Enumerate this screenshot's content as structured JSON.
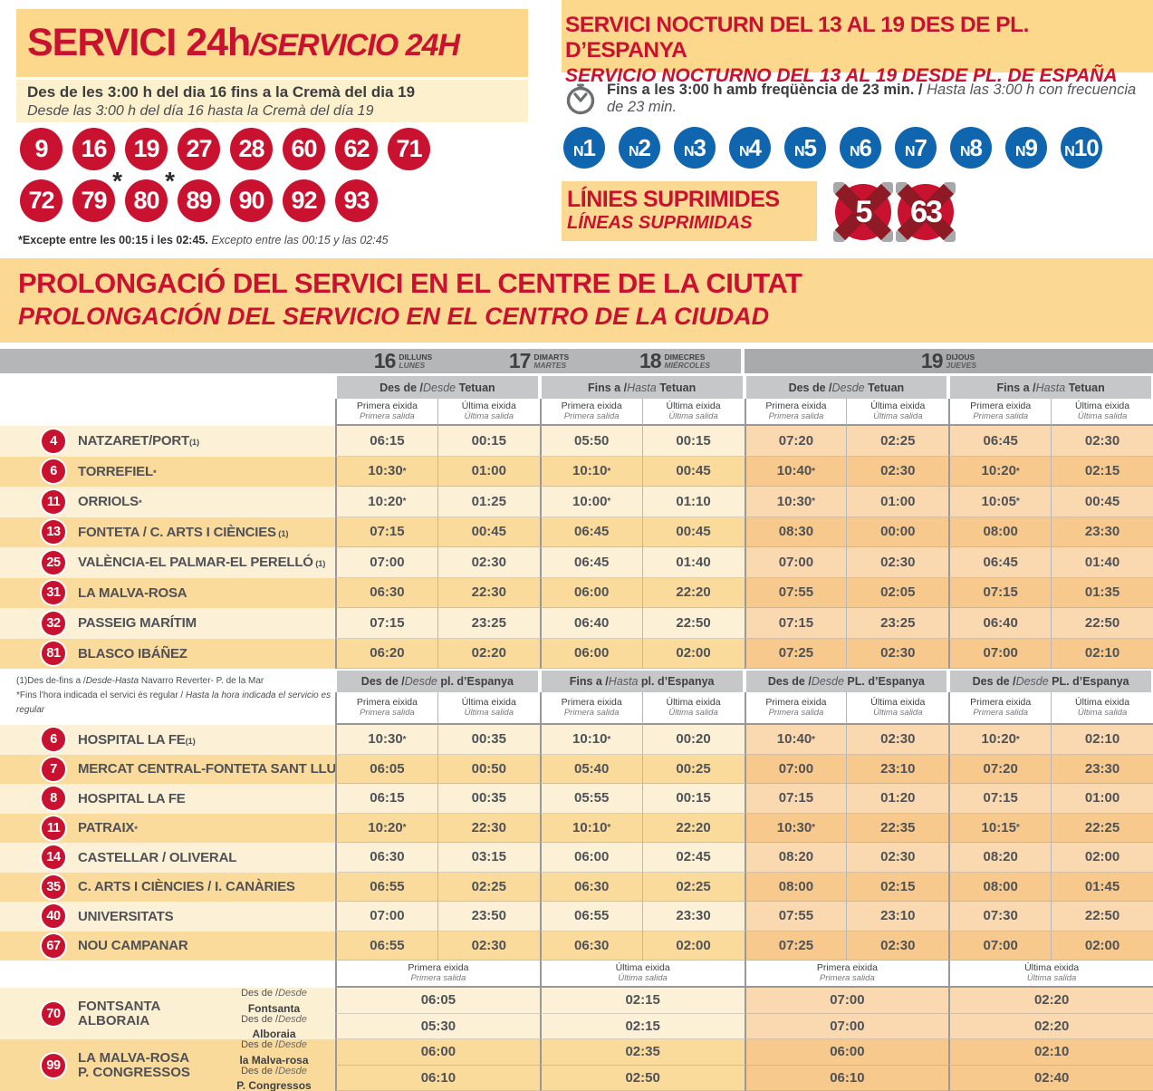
{
  "service24": {
    "title_ca": "SERVICI 24h",
    "title_es": "/SERVICIO 24H",
    "subtitle_ca": "Des de les 3:00 h del dia 16 fins a la Cremà del dia 19",
    "subtitle_es": "Desde las 3:00 h del día 16 hasta la Cremà  del día 19",
    "lines_row1": [
      "9",
      "16",
      "19",
      "27",
      "28",
      "60",
      "62",
      "71"
    ],
    "lines_row2": [
      {
        "n": "72",
        "star": ""
      },
      {
        "n": "79",
        "star": "*"
      },
      {
        "n": "80",
        "star": "*"
      },
      {
        "n": "89",
        "star": ""
      },
      {
        "n": "90",
        "star": ""
      },
      {
        "n": "92",
        "star": ""
      },
      {
        "n": "93",
        "star": ""
      }
    ],
    "footnote_ca": "*Excepte entre les 00:15 i les 02:45.",
    "footnote_es": " Excepto entre las 00:15 y las 02:45"
  },
  "night": {
    "title_ca": "SERVICI NOCTURN DEL 13 AL 19 DES DE PL. D’ESPANYA",
    "title_es": "SERVICIO NOCTURNO DEL 13 AL 19 DESDE PL. DE ESPAÑA",
    "freq_ca": "Fins a les 3:00 h amb freqüència de 23 min.",
    "freq_sep": " / ",
    "freq_es": "Hasta las 3:00 h con frecuencia de 23 min.",
    "lines": [
      "N1",
      "N2",
      "N3",
      "N4",
      "N5",
      "N6",
      "N7",
      "N8",
      "N9",
      "N10"
    ],
    "suppressed_ca": "LÍNIES SUPRIMIDES",
    "suppressed_es": "LÍNEAS SUPRIMIDAS",
    "suppressed_lines": [
      "5",
      "63"
    ]
  },
  "banner": {
    "title_ca": "PROLONGACIÓ DEL SERVICI EN EL CENTRE DE LA CIUTAT",
    "title_es": "PROLONGACIÓN DEL SERVICIO EN EL CENTRO DE LA CIUDAD"
  },
  "days": [
    {
      "num": "16",
      "ca": "DILLUNS",
      "es": "LUNES"
    },
    {
      "num": "17",
      "ca": "DIMARTS",
      "es": "MARTES"
    },
    {
      "num": "18",
      "ca": "DIMECRES",
      "es": "MIÉRCOLES"
    },
    {
      "num": "19",
      "ca": "DIJOUS",
      "es": "JUEVES"
    }
  ],
  "subhead": {
    "first_ca": "Primera eixida",
    "first_es": "Primera salida",
    "last_ca": "Última eixida",
    "last_es": "Última salida"
  },
  "block1": {
    "groups": [
      {
        "pre": "Des de /",
        "it": "Desde",
        "place": " Tetuan"
      },
      {
        "pre": "Fins a /",
        "it": "Hasta",
        "place": " Tetuan"
      },
      {
        "pre": "Des de /",
        "it": "Desde",
        "place": " Tetuan"
      },
      {
        "pre": "Fins a /",
        "it": "Hasta",
        "place": " Tetuan"
      }
    ],
    "rows": [
      {
        "line": "4",
        "name": "NATZARET/PORT",
        "mark": "(1)",
        "times": [
          "06:15",
          "00:15",
          "05:50",
          "00:15",
          "07:20",
          "02:25",
          "06:45",
          "02:30"
        ]
      },
      {
        "line": "6",
        "name": "TORREFIEL",
        "mark": "*",
        "times": [
          "10:30*",
          "01:00",
          "10:10*",
          "00:45",
          "10:40*",
          "02:30",
          "10:20*",
          "02:15"
        ]
      },
      {
        "line": "11",
        "name": "ORRIOLS",
        "mark": "*",
        "times": [
          "10:20*",
          "01:25",
          "10:00*",
          "01:10",
          "10:30*",
          "01:00",
          "10:05*",
          "00:45"
        ]
      },
      {
        "line": "13",
        "name": "FONTETA / C. ARTS I CIÈNCIES",
        "mark": " (1)",
        "times": [
          "07:15",
          "00:45",
          "06:45",
          "00:45",
          "08:30",
          "00:00",
          "08:00",
          "23:30"
        ]
      },
      {
        "line": "25",
        "name": "VALÈNCIA-EL PALMAR-EL PERELLÓ",
        "mark": " (1)",
        "times": [
          "07:00",
          "02:30",
          "06:45",
          "01:40",
          "07:00",
          "02:30",
          "06:45",
          "01:40"
        ]
      },
      {
        "line": "31",
        "name": "LA MALVA-ROSA",
        "mark": "",
        "times": [
          "06:30",
          "22:30",
          "06:00",
          "22:20",
          "07:55",
          "02:05",
          "07:15",
          "01:35"
        ]
      },
      {
        "line": "32",
        "name": "PASSEIG MARÍTIM",
        "mark": "",
        "times": [
          "07:15",
          "23:25",
          "06:40",
          "22:50",
          "07:15",
          "23:25",
          "06:40",
          "22:50"
        ]
      },
      {
        "line": "81",
        "name": "BLASCO IBÁÑEZ",
        "mark": "",
        "times": [
          "06:20",
          "02:20",
          "06:00",
          "02:00",
          "07:25",
          "02:30",
          "07:00",
          "02:10"
        ]
      }
    ]
  },
  "notes": {
    "n1_pre": "(1)Des de-fins a /",
    "n1_it": "Desde-Hasta",
    "n1_post": " Navarro Reverter- P. de la Mar",
    "n2_pre": "*Fins l'hora indicada el servici és regular / ",
    "n2_it": "Hasta la hora indicada el servicio es regular"
  },
  "block2": {
    "groups": [
      {
        "pre": "Des de /",
        "it": "Desde",
        "place": " pl. d’Espanya"
      },
      {
        "pre": "Fins a /",
        "it": "Hasta",
        "place": " pl. d’Espanya"
      },
      {
        "pre": "Des de /",
        "it": "Desde",
        "place": " PL. d’Espanya"
      },
      {
        "pre": "Des de /",
        "it": "Desde",
        "place": " PL. d’Espanya"
      }
    ],
    "rows": [
      {
        "line": "6",
        "name": "HOSPITAL LA FE",
        "mark": "(1)",
        "times": [
          "10:30*",
          "00:35",
          "10:10*",
          "00:20",
          "10:40*",
          "02:30",
          "10:20*",
          "02:10"
        ]
      },
      {
        "line": "7",
        "name": "MERCAT CENTRAL-FONTETA SANT LLUÍS",
        "mark": "",
        "times": [
          "06:05",
          "00:50",
          "05:40",
          "00:25",
          "07:00",
          "23:10",
          "07:20",
          "23:30"
        ]
      },
      {
        "line": "8",
        "name": "HOSPITAL LA FE",
        "mark": "",
        "times": [
          "06:15",
          "00:35",
          "05:55",
          "00:15",
          "07:15",
          "01:20",
          "07:15",
          "01:00"
        ]
      },
      {
        "line": "11",
        "name": "PATRAIX",
        "mark": "*",
        "times": [
          "10:20*",
          "22:30",
          "10:10*",
          "22:20",
          "10:30*",
          "22:35",
          "10:15*",
          "22:25"
        ]
      },
      {
        "line": "14",
        "name": "CASTELLAR / OLIVERAL",
        "mark": "",
        "times": [
          "06:30",
          "03:15",
          "06:00",
          "02:45",
          "08:20",
          "02:30",
          "08:20",
          "02:00"
        ]
      },
      {
        "line": "35",
        "name": "C. ARTS I CIÈNCIES / I. CANÀRIES",
        "mark": "",
        "times": [
          "06:55",
          "02:25",
          "06:30",
          "02:25",
          "08:00",
          "02:15",
          "08:00",
          "01:45"
        ]
      },
      {
        "line": "40",
        "name": "UNIVERSITATS",
        "mark": "",
        "times": [
          "07:00",
          "23:50",
          "06:55",
          "23:30",
          "07:55",
          "23:10",
          "07:30",
          "22:50"
        ]
      },
      {
        "line": "67",
        "name": "NOU CAMPANAR",
        "mark": "",
        "times": [
          "06:55",
          "02:30",
          "06:30",
          "02:00",
          "07:25",
          "02:30",
          "07:00",
          "02:00"
        ]
      }
    ]
  },
  "block3": {
    "headers": [
      {
        "ca": "Primera eixida",
        "es": "Primera salida"
      },
      {
        "ca": "Última eixida",
        "es": "Última salida"
      },
      {
        "ca": "Primera eixida",
        "es": "Primera salida"
      },
      {
        "ca": "Última eixida",
        "es": "Última salida"
      }
    ],
    "rows": [
      {
        "line": "70",
        "name1": "FONTSANTA",
        "name2": "ALBORAIA",
        "sub": [
          {
            "pre": "Des de /",
            "it": "Desde",
            "from": "Fontsanta",
            "times": [
              "06:05",
              "02:15",
              "07:00",
              "02:20"
            ]
          },
          {
            "pre": "Des de /",
            "it": "Desde",
            "from": "Alboraia",
            "times": [
              "05:30",
              "02:15",
              "07:00",
              "02:20"
            ]
          }
        ]
      },
      {
        "line": "99",
        "name1": "LA MALVA-ROSA",
        "name2": "P. CONGRESSOS",
        "sub": [
          {
            "pre": "Des de /",
            "it": "Desde",
            "from": "la Malva-rosa",
            "times": [
              "06:00",
              "02:35",
              "06:00",
              "02:10"
            ]
          },
          {
            "pre": "Des de /",
            "it": "Desde",
            "from": "P. Congressos",
            "times": [
              "06:10",
              "02:50",
              "06:10",
              "02:40"
            ]
          }
        ]
      }
    ]
  }
}
